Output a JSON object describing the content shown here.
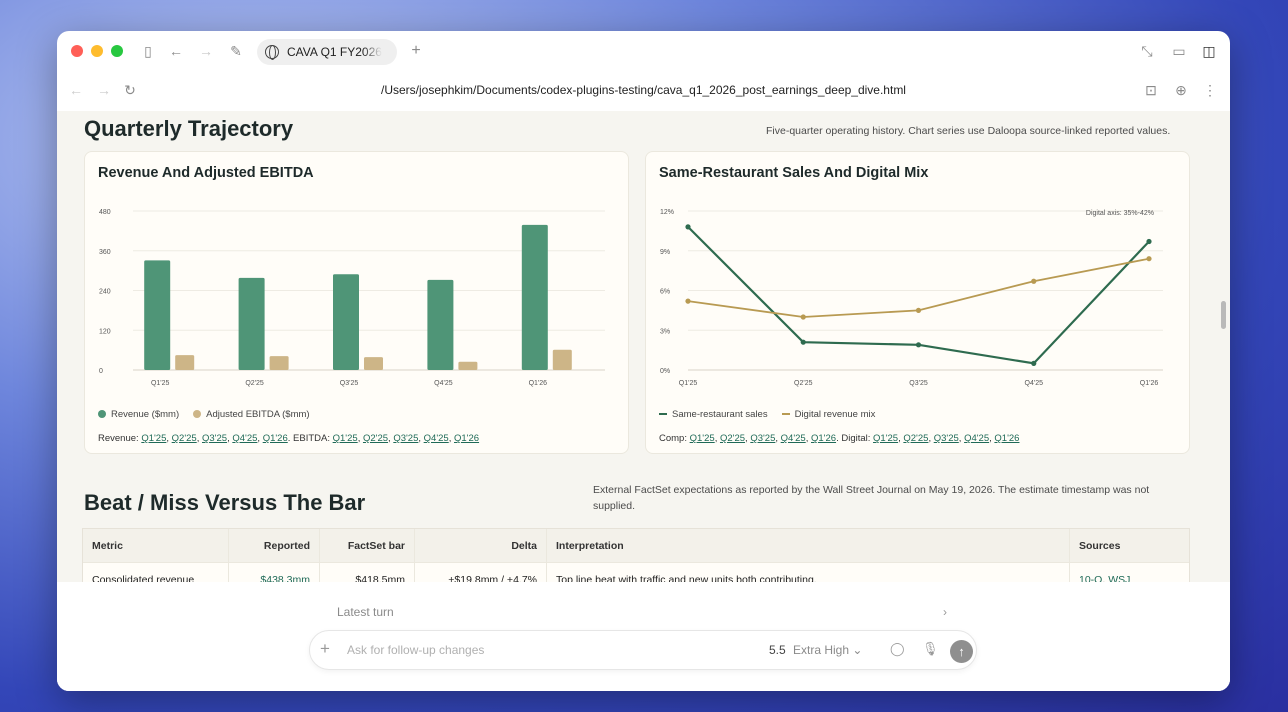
{
  "browser": {
    "tab_title": "CAVA Q1 FY2026",
    "url": "/Users/josephkim/Documents/codex-plugins-testing/cava_q1_2026_post_earnings_deep_dive.html"
  },
  "section1": {
    "title": "Quarterly Trajectory",
    "note": "Five-quarter operating history. Chart series use Daloopa source-linked reported values."
  },
  "chart_data": [
    {
      "type": "bar",
      "title": "Revenue And Adjusted EBITDA",
      "categories": [
        "Q1'25",
        "Q2'25",
        "Q3'25",
        "Q4'25",
        "Q1'26"
      ],
      "y_ticks": [
        "480",
        "360",
        "240",
        "120",
        "0"
      ],
      "ylim": [
        0,
        480
      ],
      "grid": true,
      "legend": "bottom-left",
      "series": [
        {
          "name": "Revenue ($mm)",
          "color": "#4f9577",
          "values": [
            331,
            278,
            289,
            272,
            438
          ]
        },
        {
          "name": "Adjusted EBITDA ($mm)",
          "color": "#cdb587",
          "values": [
            45,
            42,
            39,
            25,
            61
          ]
        }
      ]
    },
    {
      "type": "line",
      "title": "Same-Restaurant Sales And Digital Mix",
      "categories": [
        "Q1'25",
        "Q2'25",
        "Q3'25",
        "Q4'25",
        "Q1'26"
      ],
      "y_ticks": [
        "12%",
        "9%",
        "6%",
        "3%",
        "0%"
      ],
      "ylim": [
        0,
        12
      ],
      "annotation": "Digital axis: 35%-42%",
      "grid": true,
      "legend": "bottom-left",
      "series": [
        {
          "name": "Same-restaurant sales",
          "color": "#2e6b4f",
          "values": [
            10.8,
            2.1,
            1.9,
            0.5,
            9.7
          ]
        },
        {
          "name": "Digital revenue mix",
          "color": "#b89a52",
          "values": [
            5.2,
            4.0,
            4.5,
            6.7,
            8.4
          ]
        }
      ]
    }
  ],
  "chart1_sources": {
    "prefix": "Revenue:",
    "rev_links": [
      "Q1'25",
      "Q2'25",
      "Q3'25",
      "Q4'25",
      "Q1'26"
    ],
    "mid": "EBITDA:",
    "ebitda_links": [
      "Q1'25",
      "Q2'25",
      "Q3'25",
      "Q4'25",
      "Q1'26"
    ]
  },
  "chart2_sources": {
    "prefix": "Comp:",
    "comp_links": [
      "Q1'25",
      "Q2'25",
      "Q3'25",
      "Q4'25",
      "Q1'26"
    ],
    "mid": "Digital:",
    "digital_links": [
      "Q1'25",
      "Q2'25",
      "Q3'25",
      "Q4'25",
      "Q1'26"
    ]
  },
  "section2": {
    "title": "Beat / Miss Versus The Bar",
    "note": "External FactSet expectations as reported by the Wall Street Journal on May 19, 2026. The estimate timestamp was not supplied."
  },
  "table": {
    "headers": [
      "Metric",
      "Reported",
      "FactSet bar",
      "Delta",
      "Interpretation",
      "Sources"
    ],
    "rows": [
      {
        "metric": "Consolidated revenue",
        "reported": "$438.3mm",
        "factset": "$418.5mm",
        "delta": "+$19.8mm / +4.7%",
        "interpretation": "Top line beat with traffic and new units both contributing.",
        "source1": "10-Q",
        "source2": "WSJ"
      }
    ]
  },
  "composer": {
    "latest_turn": "Latest turn",
    "placeholder": "Ask for follow-up changes",
    "model": "5.5",
    "effort": "Extra High"
  }
}
